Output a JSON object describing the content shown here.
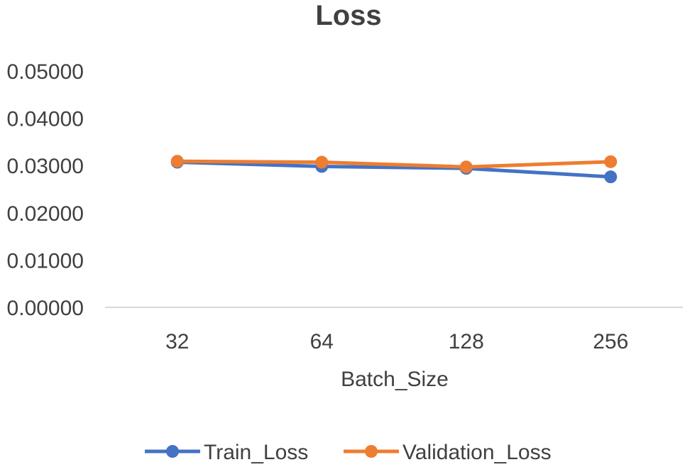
{
  "chart_data": {
    "type": "line",
    "title": "Loss",
    "xlabel": "Batch_Size",
    "ylabel": "",
    "categories": [
      "32",
      "64",
      "128",
      "256"
    ],
    "ylim": [
      0,
      0.05
    ],
    "yticks": [
      "0.00000",
      "0.01000",
      "0.02000",
      "0.03000",
      "0.04000",
      "0.05000"
    ],
    "grid": false,
    "legend_position": "bottom",
    "series": [
      {
        "name": "Train_Loss",
        "color": "#4472C4",
        "values": [
          0.0307,
          0.0298,
          0.0294,
          0.0276
        ]
      },
      {
        "name": "Validation_Loss",
        "color": "#ED7D31",
        "values": [
          0.0309,
          0.0307,
          0.0297,
          0.0308
        ]
      }
    ]
  }
}
